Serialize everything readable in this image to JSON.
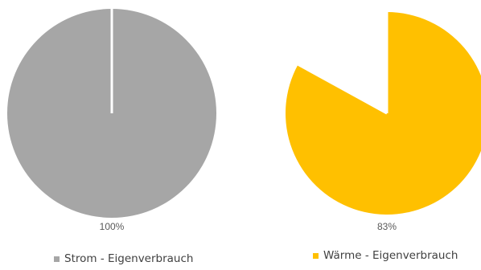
{
  "chart_data": [
    {
      "type": "pie",
      "slices": [
        {
          "name": "Strom - Eigenverbrauch",
          "value": 100,
          "color": "#a6a6a6"
        }
      ],
      "data_label": "100%",
      "legend": {
        "label": "Strom - Eigenverbrauch",
        "color": "#a6a6a6"
      }
    },
    {
      "type": "pie",
      "slices": [
        {
          "name": "Wärme - Eigenverbrauch",
          "value": 83,
          "color": "#ffc000"
        },
        {
          "name": "",
          "value": 17,
          "color": "#ffffff"
        }
      ],
      "data_label": "83%",
      "legend": {
        "label": "Wärme - Eigenverbrauch",
        "color": "#ffc000"
      }
    }
  ]
}
